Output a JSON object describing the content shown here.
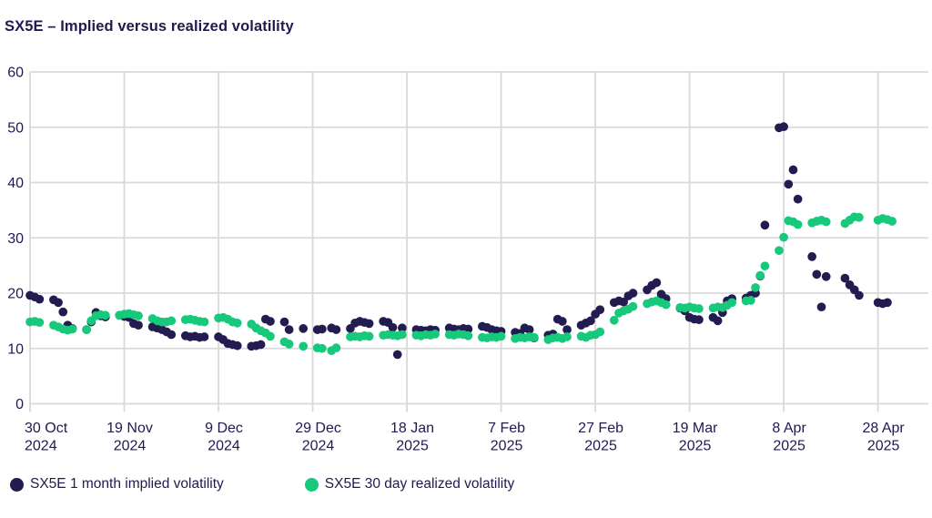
{
  "title": "SX5E – Implied versus realized volatility",
  "legend": {
    "items": [
      {
        "label": "SX5E 1 month implied volatility",
        "color": "#221c51"
      },
      {
        "label": "SX5E 30 day realized volatility",
        "color": "#17c97a"
      }
    ]
  },
  "colors": {
    "implied": "#221c51",
    "realized": "#17c97a",
    "axis_text": "#1f1a4f",
    "gridline": "#d9d9d9",
    "background": "#ffffff"
  },
  "chart_data": {
    "type": "scatter",
    "title": "SX5E – Implied versus realized volatility",
    "xlabel": "",
    "ylabel": "",
    "grid": true,
    "legend_position": "bottom",
    "x_axis": {
      "kind": "date",
      "start_date": "30 Oct 2024",
      "end_date": "28 Apr 2025",
      "tick_days": [
        0,
        20,
        40,
        60,
        80,
        100,
        120,
        140,
        160,
        180
      ],
      "tick_labels": [
        [
          "30 Oct",
          "2024"
        ],
        [
          "19 Nov",
          "2024"
        ],
        [
          "9 Dec",
          "2024"
        ],
        [
          "29 Dec",
          "2024"
        ],
        [
          "18 Jan",
          "2025"
        ],
        [
          "7 Feb",
          "2025"
        ],
        [
          "27 Feb",
          "2025"
        ],
        [
          "19 Mar",
          "2025"
        ],
        [
          "8 Apr",
          "2025"
        ],
        [
          "28 Apr",
          "2025"
        ]
      ]
    },
    "y_axis": {
      "min": 0,
      "max": 60,
      "ticks": [
        0,
        10,
        20,
        30,
        40,
        50,
        60
      ]
    },
    "series": [
      {
        "name": "SX5E 1 month implied volatility",
        "color": "#221c51",
        "points": [
          [
            0,
            19.6
          ],
          [
            1,
            19.3
          ],
          [
            2,
            18.9
          ],
          [
            5,
            18.8
          ],
          [
            6,
            18.3
          ],
          [
            7,
            16.6
          ],
          [
            8,
            14.2
          ],
          [
            9,
            13.6
          ],
          [
            12,
            13.4
          ],
          [
            13,
            14.8
          ],
          [
            14,
            16.5
          ],
          [
            15,
            15.9
          ],
          [
            16,
            15.7
          ],
          [
            19,
            16.0
          ],
          [
            20,
            15.8
          ],
          [
            21,
            15.6
          ],
          [
            22,
            14.5
          ],
          [
            23,
            14.2
          ],
          [
            26,
            13.9
          ],
          [
            27,
            13.7
          ],
          [
            28,
            13.4
          ],
          [
            29,
            13.0
          ],
          [
            30,
            12.5
          ],
          [
            33,
            12.3
          ],
          [
            34,
            12.1
          ],
          [
            35,
            12.2
          ],
          [
            36,
            12.0
          ],
          [
            37,
            12.1
          ],
          [
            40,
            12.1
          ],
          [
            41,
            11.6
          ],
          [
            42,
            10.9
          ],
          [
            43,
            10.7
          ],
          [
            44,
            10.5
          ],
          [
            47,
            10.4
          ],
          [
            48,
            10.5
          ],
          [
            49,
            10.7
          ],
          [
            50,
            15.3
          ],
          [
            51,
            14.9
          ],
          [
            54,
            14.8
          ],
          [
            55,
            13.4
          ],
          [
            58,
            13.6
          ],
          [
            61,
            13.4
          ],
          [
            62,
            13.5
          ],
          [
            64,
            13.7
          ],
          [
            65,
            13.4
          ],
          [
            68,
            13.6
          ],
          [
            69,
            14.6
          ],
          [
            70,
            14.9
          ],
          [
            71,
            14.7
          ],
          [
            72,
            14.5
          ],
          [
            75,
            14.9
          ],
          [
            76,
            14.7
          ],
          [
            77,
            13.8
          ],
          [
            78,
            8.9
          ],
          [
            79,
            13.7
          ],
          [
            82,
            13.4
          ],
          [
            83,
            13.3
          ],
          [
            84,
            13.2
          ],
          [
            85,
            13.4
          ],
          [
            86,
            13.3
          ],
          [
            89,
            13.7
          ],
          [
            90,
            13.5
          ],
          [
            91,
            13.4
          ],
          [
            92,
            13.6
          ],
          [
            93,
            13.5
          ],
          [
            96,
            14.0
          ],
          [
            97,
            13.8
          ],
          [
            98,
            13.4
          ],
          [
            99,
            13.2
          ],
          [
            100,
            13.1
          ],
          [
            103,
            12.9
          ],
          [
            104,
            12.7
          ],
          [
            105,
            13.7
          ],
          [
            106,
            13.4
          ],
          [
            107,
            11.9
          ],
          [
            110,
            12.4
          ],
          [
            111,
            12.6
          ],
          [
            112,
            15.3
          ],
          [
            113,
            14.9
          ],
          [
            114,
            13.4
          ],
          [
            117,
            14.2
          ],
          [
            118,
            14.6
          ],
          [
            119,
            15.0
          ],
          [
            120,
            16.2
          ],
          [
            121,
            17.0
          ],
          [
            124,
            18.3
          ],
          [
            125,
            18.6
          ],
          [
            126,
            18.4
          ],
          [
            127,
            19.5
          ],
          [
            128,
            20.0
          ],
          [
            131,
            20.6
          ],
          [
            132,
            21.4
          ],
          [
            133,
            21.9
          ],
          [
            134,
            19.8
          ],
          [
            135,
            19.0
          ],
          [
            138,
            17.3
          ],
          [
            139,
            16.8
          ],
          [
            140,
            15.6
          ],
          [
            141,
            15.3
          ],
          [
            142,
            15.2
          ],
          [
            145,
            15.6
          ],
          [
            146,
            15.0
          ],
          [
            147,
            16.5
          ],
          [
            148,
            18.6
          ],
          [
            149,
            19.0
          ],
          [
            152,
            19.1
          ],
          [
            153,
            19.6
          ],
          [
            154,
            20.0
          ],
          [
            155,
            23.1
          ],
          [
            156,
            32.3
          ],
          [
            159,
            49.9
          ],
          [
            160,
            50.1
          ],
          [
            161,
            39.7
          ],
          [
            162,
            42.3
          ],
          [
            163,
            37.0
          ],
          [
            166,
            26.6
          ],
          [
            167,
            23.4
          ],
          [
            168,
            17.5
          ],
          [
            169,
            23.0
          ],
          [
            173,
            22.7
          ],
          [
            174,
            21.5
          ],
          [
            175,
            20.6
          ],
          [
            176,
            19.6
          ],
          [
            180,
            18.3
          ],
          [
            181,
            18.1
          ],
          [
            182,
            18.3
          ]
        ]
      },
      {
        "name": "SX5E 30 day realized volatility",
        "color": "#17c97a",
        "points": [
          [
            0,
            14.8
          ],
          [
            1,
            14.9
          ],
          [
            2,
            14.7
          ],
          [
            5,
            14.2
          ],
          [
            6,
            13.9
          ],
          [
            7,
            13.5
          ],
          [
            8,
            13.3
          ],
          [
            9,
            13.5
          ],
          [
            12,
            13.4
          ],
          [
            13,
            15.0
          ],
          [
            14,
            15.9
          ],
          [
            15,
            16.1
          ],
          [
            16,
            16.0
          ],
          [
            19,
            16.0
          ],
          [
            20,
            16.2
          ],
          [
            21,
            16.3
          ],
          [
            22,
            16.1
          ],
          [
            23,
            15.9
          ],
          [
            26,
            15.4
          ],
          [
            27,
            15.0
          ],
          [
            28,
            14.8
          ],
          [
            29,
            14.8
          ],
          [
            30,
            15.0
          ],
          [
            33,
            15.2
          ],
          [
            34,
            15.3
          ],
          [
            35,
            15.1
          ],
          [
            36,
            14.9
          ],
          [
            37,
            14.8
          ],
          [
            40,
            15.5
          ],
          [
            41,
            15.6
          ],
          [
            42,
            15.3
          ],
          [
            43,
            14.8
          ],
          [
            44,
            14.6
          ],
          [
            47,
            14.4
          ],
          [
            48,
            13.7
          ],
          [
            49,
            13.2
          ],
          [
            50,
            12.8
          ],
          [
            51,
            12.2
          ],
          [
            54,
            11.2
          ],
          [
            55,
            10.8
          ],
          [
            58,
            10.4
          ],
          [
            61,
            10.1
          ],
          [
            62,
            10.0
          ],
          [
            64,
            9.6
          ],
          [
            65,
            10.1
          ],
          [
            68,
            12.1
          ],
          [
            69,
            12.2
          ],
          [
            70,
            12.1
          ],
          [
            71,
            12.3
          ],
          [
            72,
            12.2
          ],
          [
            75,
            12.4
          ],
          [
            76,
            12.5
          ],
          [
            77,
            12.4
          ],
          [
            78,
            12.3
          ],
          [
            79,
            12.5
          ],
          [
            82,
            12.4
          ],
          [
            83,
            12.3
          ],
          [
            84,
            12.5
          ],
          [
            85,
            12.4
          ],
          [
            86,
            12.6
          ],
          [
            89,
            12.5
          ],
          [
            90,
            12.4
          ],
          [
            91,
            12.6
          ],
          [
            92,
            12.5
          ],
          [
            93,
            12.3
          ],
          [
            96,
            12.0
          ],
          [
            97,
            11.9
          ],
          [
            98,
            12.1
          ],
          [
            99,
            12.0
          ],
          [
            100,
            12.2
          ],
          [
            103,
            11.8
          ],
          [
            104,
            12.0
          ],
          [
            105,
            11.9
          ],
          [
            106,
            12.1
          ],
          [
            107,
            12.0
          ],
          [
            110,
            11.6
          ],
          [
            111,
            11.9
          ],
          [
            112,
            12.0
          ],
          [
            113,
            11.8
          ],
          [
            114,
            12.1
          ],
          [
            117,
            12.2
          ],
          [
            118,
            12.0
          ],
          [
            119,
            12.4
          ],
          [
            120,
            12.5
          ],
          [
            121,
            13.0
          ],
          [
            124,
            15.1
          ],
          [
            125,
            16.4
          ],
          [
            126,
            16.8
          ],
          [
            127,
            17.1
          ],
          [
            128,
            17.6
          ],
          [
            131,
            18.1
          ],
          [
            132,
            18.4
          ],
          [
            133,
            18.6
          ],
          [
            134,
            18.3
          ],
          [
            135,
            17.9
          ],
          [
            138,
            17.4
          ],
          [
            139,
            17.3
          ],
          [
            140,
            17.5
          ],
          [
            141,
            17.3
          ],
          [
            142,
            17.2
          ],
          [
            145,
            17.3
          ],
          [
            146,
            17.5
          ],
          [
            147,
            17.4
          ],
          [
            148,
            17.8
          ],
          [
            149,
            18.3
          ],
          [
            152,
            18.6
          ],
          [
            153,
            18.7
          ],
          [
            154,
            21.0
          ],
          [
            155,
            23.2
          ],
          [
            156,
            24.9
          ],
          [
            159,
            27.7
          ],
          [
            160,
            30.1
          ],
          [
            161,
            33.1
          ],
          [
            162,
            32.9
          ],
          [
            163,
            32.4
          ],
          [
            166,
            32.7
          ],
          [
            167,
            33.0
          ],
          [
            168,
            33.2
          ],
          [
            169,
            32.9
          ],
          [
            173,
            32.6
          ],
          [
            174,
            33.2
          ],
          [
            175,
            33.8
          ],
          [
            176,
            33.7
          ],
          [
            180,
            33.2
          ],
          [
            181,
            33.5
          ],
          [
            182,
            33.3
          ],
          [
            183,
            33.0
          ]
        ]
      }
    ]
  }
}
